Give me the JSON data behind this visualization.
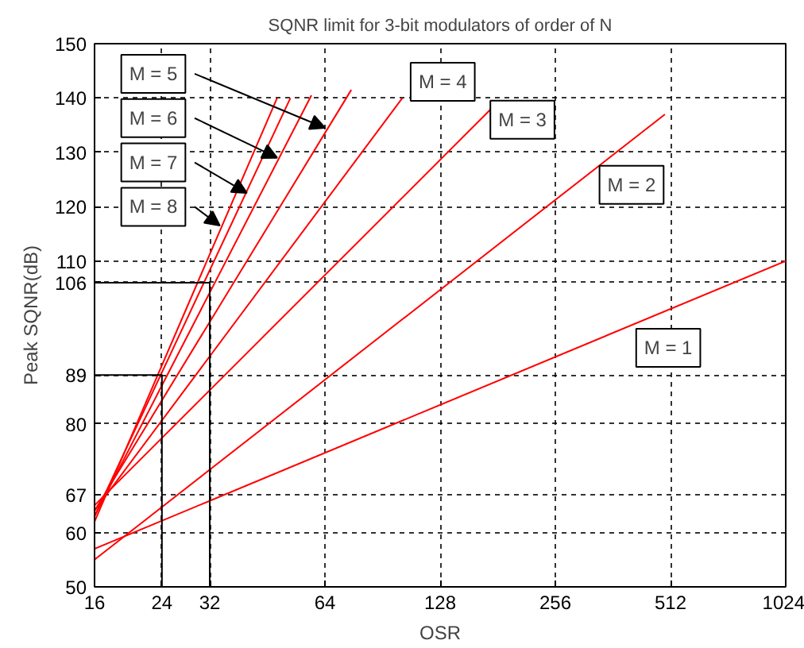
{
  "chart_data": {
    "type": "line",
    "title": "SQNR limit for 3-bit modulators of order of N",
    "xlabel": "OSR",
    "ylabel": "Peak SQNR(dB)",
    "log": "x",
    "xlim": [
      16,
      1024
    ],
    "ylim": [
      50,
      150
    ],
    "xticks": [
      16,
      24,
      32,
      64,
      128,
      256,
      512,
      1024
    ],
    "yticks": [
      50,
      60,
      67,
      80,
      89,
      106,
      110,
      120,
      130,
      140,
      150
    ],
    "grid": true,
    "line_style": "solid",
    "marker": "none",
    "series": [
      {
        "color": "#ff0000",
        "x": [
          16,
          1024
        ],
        "values": [
          57,
          110
        ]
      },
      {
        "color": "#ff0000",
        "x": [
          16,
          495
        ],
        "values": [
          55,
          137
        ]
      },
      {
        "color": "#ff0000",
        "x": [
          16,
          174
        ],
        "values": [
          65,
          138
        ]
      },
      {
        "color": "#ff0000",
        "x": [
          16,
          102
        ],
        "values": [
          64,
          140
        ]
      },
      {
        "color": "#ff0000",
        "x": [
          16,
          75
        ],
        "values": [
          64,
          141.5
        ]
      },
      {
        "color": "#ff0000",
        "x": [
          16,
          59
        ],
        "values": [
          63,
          140.5
        ]
      },
      {
        "color": "#ff0000",
        "x": [
          16,
          52
        ],
        "values": [
          63,
          140
        ]
      },
      {
        "color": "#ff0000",
        "x": [
          16,
          48
        ],
        "values": [
          62,
          140
        ]
      },
      {
        "color": "#000000",
        "x": [
          32,
          32,
          16
        ],
        "values": [
          50,
          106,
          106
        ]
      },
      {
        "color": "#000000",
        "x": [
          24,
          24,
          16
        ],
        "values": [
          50,
          89,
          89
        ]
      }
    ],
    "annotations": [
      {
        "text": "M = 1",
        "x": 505,
        "y": 94
      },
      {
        "text": "M = 2",
        "x": 405,
        "y": 124
      },
      {
        "text": "M = 3",
        "x": 210,
        "y": 136
      },
      {
        "text": "M = 4",
        "x": 130,
        "y": 143
      },
      {
        "text": "M = 5",
        "x": 64,
        "y": 134.5
      },
      {
        "text": "M = 6",
        "x": 48,
        "y": 129
      },
      {
        "text": "M = 7",
        "x": 40,
        "y": 122.5
      },
      {
        "text": "M = 8",
        "x": 34,
        "y": 116.5
      }
    ]
  }
}
